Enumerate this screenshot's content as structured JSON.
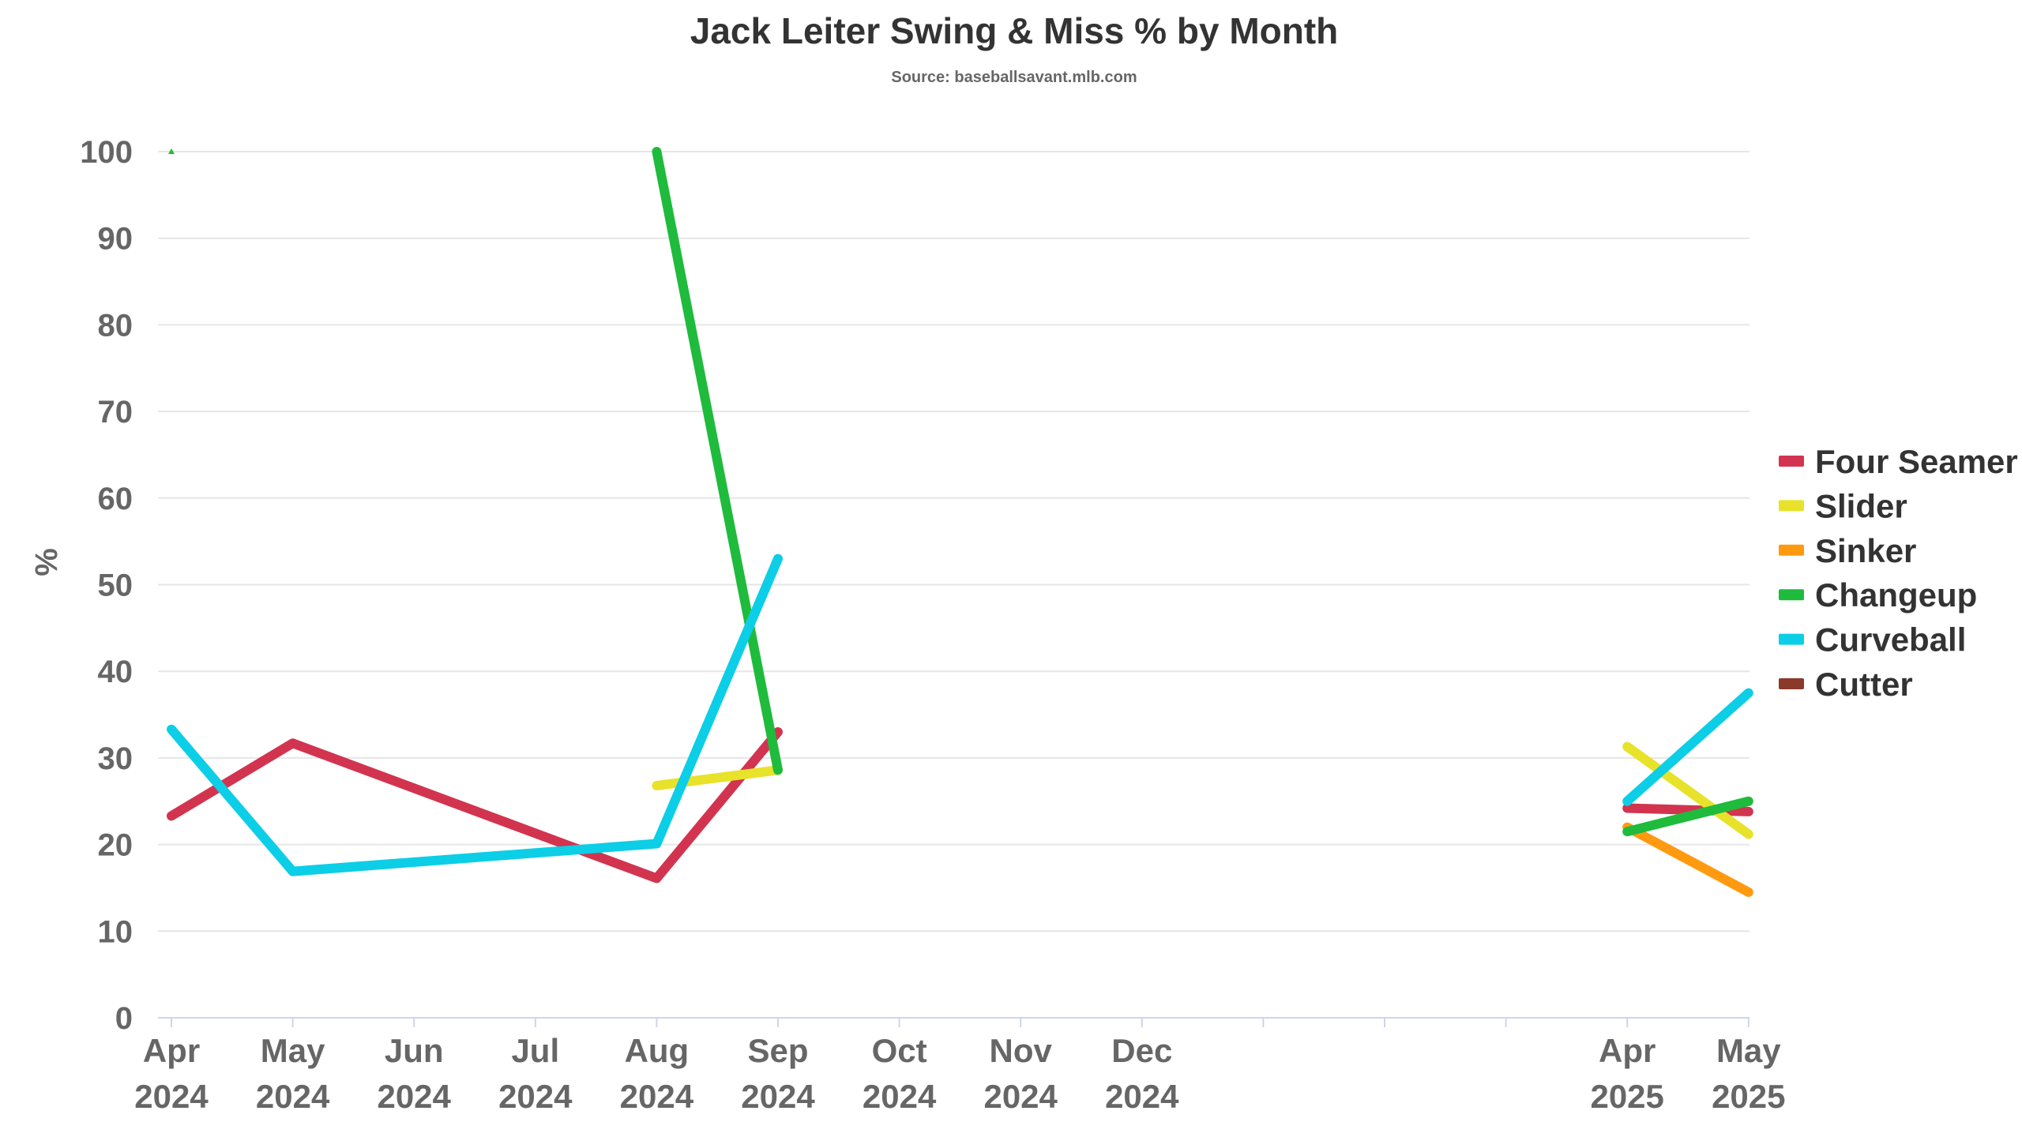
{
  "chart_data": {
    "type": "line",
    "title": "Jack Leiter Swing & Miss % by Month",
    "subtitle": "Source: baseballsavant.mlb.com",
    "ylabel": "%",
    "xlabel": "",
    "ylim": [
      0,
      100
    ],
    "yticks": [
      0,
      10,
      20,
      30,
      40,
      50,
      60,
      70,
      80,
      90,
      100
    ],
    "grid": true,
    "legend_position": "right",
    "x_slots": 14,
    "categories": [
      {
        "slot": 0,
        "month": "Apr",
        "year": "2024"
      },
      {
        "slot": 1,
        "month": "May",
        "year": "2024"
      },
      {
        "slot": 2,
        "month": "Jun",
        "year": "2024"
      },
      {
        "slot": 3,
        "month": "Jul",
        "year": "2024"
      },
      {
        "slot": 4,
        "month": "Aug",
        "year": "2024"
      },
      {
        "slot": 5,
        "month": "Sep",
        "year": "2024"
      },
      {
        "slot": 6,
        "month": "Oct",
        "year": "2024"
      },
      {
        "slot": 7,
        "month": "Nov",
        "year": "2024"
      },
      {
        "slot": 8,
        "month": "Dec",
        "year": "2024"
      },
      {
        "slot": 12,
        "month": "Apr",
        "year": "2025"
      },
      {
        "slot": 13,
        "month": "May",
        "year": "2025"
      }
    ],
    "series": [
      {
        "name": "Four Seamer",
        "color": "#d2344f",
        "points": [
          {
            "slot": 0,
            "value": 23.3
          },
          {
            "slot": 1,
            "value": 31.7
          },
          {
            "slot": 4,
            "value": 16.1
          },
          {
            "slot": 5,
            "value": 33.0
          },
          {
            "slot": 12,
            "value": 24.2
          },
          {
            "slot": 13,
            "value": 23.8
          }
        ]
      },
      {
        "name": "Slider",
        "color": "#e8e22a",
        "points": [
          {
            "slot": 4,
            "value": 26.8
          },
          {
            "slot": 5,
            "value": 28.6
          },
          {
            "slot": 12,
            "value": 31.3
          },
          {
            "slot": 13,
            "value": 21.2
          }
        ]
      },
      {
        "name": "Sinker",
        "color": "#ff9a10",
        "points": [
          {
            "slot": 12,
            "value": 22.0
          },
          {
            "slot": 13,
            "value": 14.5
          }
        ]
      },
      {
        "name": "Changeup",
        "color": "#1fbb3c",
        "points": [
          {
            "slot": 0,
            "value": 100
          },
          {
            "slot": 4,
            "value": 100
          },
          {
            "slot": 5,
            "value": 28.6
          },
          {
            "slot": 12,
            "value": 21.5
          },
          {
            "slot": 13,
            "value": 25.0
          }
        ],
        "breaks_after_slot": [
          0
        ]
      },
      {
        "name": "Curveball",
        "color": "#0ccee6",
        "points": [
          {
            "slot": 0,
            "value": 33.3
          },
          {
            "slot": 1,
            "value": 16.9
          },
          {
            "slot": 4,
            "value": 20.1
          },
          {
            "slot": 5,
            "value": 53.0
          },
          {
            "slot": 12,
            "value": 25.0
          },
          {
            "slot": 13,
            "value": 37.5
          }
        ]
      },
      {
        "name": "Cutter",
        "color": "#8b3a2a",
        "points": []
      }
    ]
  }
}
